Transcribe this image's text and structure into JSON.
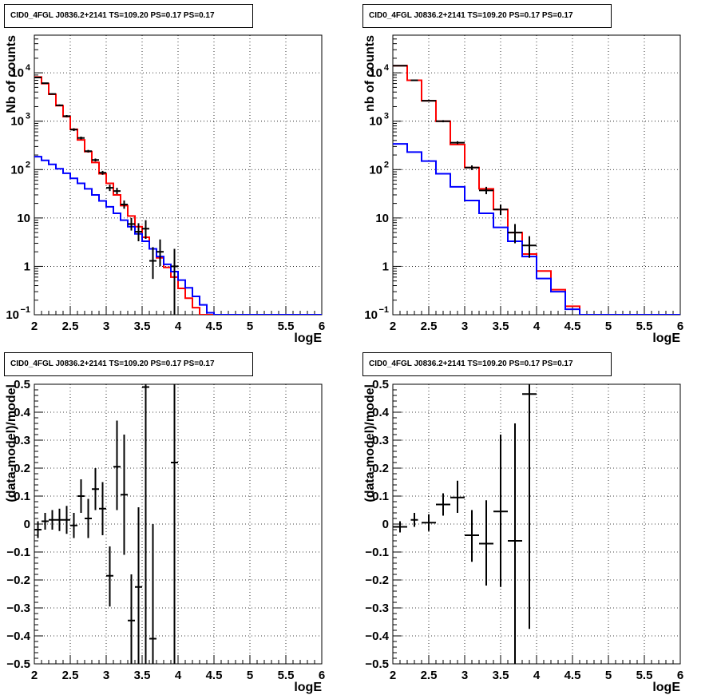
{
  "canvas_bg": "#ffffff",
  "chart_data": [
    {
      "type": "line",
      "title": "CID0_4FGL J0836.2+2141 TS=109.20 PS=0.17 PS=0.17",
      "xlabel": "logE",
      "ylabel": "Nb of counts",
      "xlim": [
        2,
        6
      ],
      "ylim": [
        0.1,
        60000
      ],
      "log_y": true,
      "grid": true,
      "x_ticks": [
        "2",
        "2.5",
        "3",
        "3.5",
        "4",
        "4.5",
        "5",
        "5.5",
        "6"
      ],
      "y_ticks": [
        {
          "v": 0.1,
          "label": "10",
          "exp": "−1"
        },
        {
          "v": 1,
          "label": "1"
        },
        {
          "v": 10,
          "label": "10"
        },
        {
          "v": 100,
          "label": "10",
          "exp": "2"
        },
        {
          "v": 1000,
          "label": "10",
          "exp": "3"
        },
        {
          "v": 10000,
          "label": "10",
          "exp": "4"
        }
      ],
      "bin_edges": [
        2.0,
        2.1,
        2.2,
        2.3,
        2.4,
        2.5,
        2.6,
        2.7,
        2.8,
        2.9,
        3.0,
        3.1,
        3.2,
        3.3,
        3.4,
        3.5,
        3.6,
        3.7,
        3.8,
        3.9,
        4.0,
        4.1,
        4.2,
        4.3,
        4.4,
        4.5,
        4.6,
        4.7,
        4.8,
        4.9,
        5.0,
        5.1,
        5.2,
        5.3,
        5.4,
        5.5,
        5.6,
        5.7,
        5.8,
        5.9,
        6.0
      ],
      "series": [
        {
          "color": "#ff0000",
          "style": "step",
          "values": [
            8200,
            6000,
            3600,
            2100,
            1250,
            680,
            410,
            235,
            140,
            82,
            52,
            30,
            18,
            11,
            6.6,
            4.0,
            2.3,
            1.5,
            0.95,
            0.6,
            0.35,
            0.22,
            0.14,
            0.1,
            0.1,
            0.1,
            0.1,
            0.1,
            0.1,
            0.1,
            0.1,
            0.1,
            0.1,
            0.1,
            0.1,
            0.1,
            0.1,
            0.1,
            0.1,
            0.1
          ]
        },
        {
          "color": "#0000ff",
          "style": "step",
          "values": [
            185,
            155,
            128,
            104,
            84,
            66,
            52,
            40,
            30,
            22.5,
            17,
            12.5,
            9.0,
            6.6,
            4.7,
            3.3,
            2.3,
            1.6,
            1.1,
            0.78,
            0.52,
            0.36,
            0.24,
            0.16,
            0.11,
            0.1,
            0.1,
            0.1,
            0.1,
            0.1,
            0.1,
            0.1,
            0.1,
            0.1,
            0.1,
            0.1,
            0.1,
            0.1,
            0.1,
            0.1
          ]
        },
        {
          "color": "#000000",
          "style": "points",
          "points": [
            {
              "x": 2.05,
              "y": 8000,
              "lo": 7800,
              "hi": 8200
            },
            {
              "x": 2.15,
              "y": 6100,
              "lo": 5950,
              "hi": 6250
            },
            {
              "x": 2.25,
              "y": 3650,
              "lo": 3530,
              "hi": 3770
            },
            {
              "x": 2.35,
              "y": 2130,
              "lo": 2040,
              "hi": 2220
            },
            {
              "x": 2.45,
              "y": 1270,
              "lo": 1200,
              "hi": 1340
            },
            {
              "x": 2.55,
              "y": 670,
              "lo": 625,
              "hi": 715
            },
            {
              "x": 2.65,
              "y": 450,
              "lo": 420,
              "hi": 480
            },
            {
              "x": 2.75,
              "y": 240,
              "lo": 225,
              "hi": 255
            },
            {
              "x": 2.85,
              "y": 158,
              "lo": 147,
              "hi": 169
            },
            {
              "x": 2.95,
              "y": 86,
              "lo": 78,
              "hi": 94
            },
            {
              "x": 3.05,
              "y": 42,
              "lo": 36,
              "hi": 49
            },
            {
              "x": 3.15,
              "y": 36,
              "lo": 31,
              "hi": 42
            },
            {
              "x": 3.25,
              "y": 19,
              "lo": 15.5,
              "hi": 23
            },
            {
              "x": 3.35,
              "y": 7.5,
              "lo": 5.5,
              "hi": 10
            },
            {
              "x": 3.45,
              "y": 5.2,
              "lo": 3.3,
              "hi": 7.8
            },
            {
              "x": 3.55,
              "y": 6.0,
              "lo": 3.7,
              "hi": 9.0
            },
            {
              "x": 3.65,
              "y": 1.3,
              "lo": 0.55,
              "hi": 2.5
            },
            {
              "x": 3.75,
              "y": 2.0,
              "lo": 1.0,
              "hi": 3.6
            },
            {
              "x": 3.95,
              "y": 1.0,
              "lo": 0.1,
              "hi": 2.3
            }
          ]
        }
      ]
    },
    {
      "type": "line",
      "title": "CID0_4FGL J0836.2+2141 TS=109.20 PS=0.17 PS=0.17",
      "xlabel": "logE",
      "ylabel": "nb of counts",
      "xlim": [
        2,
        6
      ],
      "ylim": [
        0.1,
        60000
      ],
      "log_y": true,
      "grid": true,
      "x_ticks": [
        "2",
        "2.5",
        "3",
        "3.5",
        "4",
        "4.5",
        "5",
        "5.5",
        "6"
      ],
      "y_ticks": [
        {
          "v": 0.1,
          "label": "10",
          "exp": "−1"
        },
        {
          "v": 1,
          "label": "1"
        },
        {
          "v": 10,
          "label": "10"
        },
        {
          "v": 100,
          "label": "10",
          "exp": "2"
        },
        {
          "v": 1000,
          "label": "10",
          "exp": "3"
        },
        {
          "v": 10000,
          "label": "10",
          "exp": "4"
        }
      ],
      "bin_edges": [
        2.0,
        2.2,
        2.4,
        2.6,
        2.8,
        3.0,
        3.2,
        3.4,
        3.6,
        3.8,
        4.0,
        4.2,
        4.4,
        4.6,
        4.8,
        5.0,
        5.2,
        5.4,
        5.6,
        5.8,
        6.0
      ],
      "series": [
        {
          "color": "#ff0000",
          "style": "step",
          "values": [
            14000,
            7000,
            2650,
            1000,
            330,
            110,
            40,
            15,
            5.0,
            1.8,
            0.8,
            0.33,
            0.15,
            0.1,
            0.1,
            0.1,
            0.1,
            0.1,
            0.1,
            0.1
          ]
        },
        {
          "color": "#0000ff",
          "style": "step",
          "values": [
            340,
            230,
            150,
            82,
            44,
            23,
            12.5,
            6.4,
            3.3,
            1.6,
            0.56,
            0.3,
            0.13,
            0.1,
            0.1,
            0.1,
            0.1,
            0.1,
            0.1,
            0.1
          ]
        },
        {
          "color": "#000000",
          "style": "points",
          "points": [
            {
              "x": 2.1,
              "y": 14000,
              "lo": 13800,
              "hi": 14200
            },
            {
              "x": 2.3,
              "y": 7000,
              "lo": 6850,
              "hi": 7150
            },
            {
              "x": 2.5,
              "y": 2650,
              "lo": 2560,
              "hi": 2740
            },
            {
              "x": 2.7,
              "y": 1000,
              "lo": 950,
              "hi": 1050
            },
            {
              "x": 2.9,
              "y": 360,
              "lo": 335,
              "hi": 385
            },
            {
              "x": 3.1,
              "y": 110,
              "lo": 98,
              "hi": 122
            },
            {
              "x": 3.3,
              "y": 37,
              "lo": 31,
              "hi": 44
            },
            {
              "x": 3.5,
              "y": 15,
              "lo": 11.5,
              "hi": 19
            },
            {
              "x": 3.7,
              "y": 5.0,
              "lo": 3.0,
              "hi": 7.5
            },
            {
              "x": 3.9,
              "y": 2.7,
              "lo": 1.5,
              "hi": 4.2
            }
          ]
        }
      ]
    },
    {
      "type": "scatter",
      "title": "CID0_4FGL J0836.2+2141 TS=109.20 PS=0.17 PS=0.17",
      "xlabel": "logE",
      "ylabel": "(data-model)/model",
      "xlim": [
        2,
        6
      ],
      "ylim": [
        -0.5,
        0.5
      ],
      "log_y": false,
      "grid": true,
      "x_ticks": [
        "2",
        "2.5",
        "3",
        "3.5",
        "4",
        "4.5",
        "5",
        "5.5",
        "6"
      ],
      "y_ticks": [
        {
          "v": -0.5,
          "label": "−0.5"
        },
        {
          "v": -0.4,
          "label": "−0.4"
        },
        {
          "v": -0.3,
          "label": "−0.3"
        },
        {
          "v": -0.2,
          "label": "−0.2"
        },
        {
          "v": -0.1,
          "label": "−0.1"
        },
        {
          "v": 0,
          "label": "0"
        },
        {
          "v": 0.1,
          "label": "0.1"
        },
        {
          "v": 0.2,
          "label": "0.2"
        },
        {
          "v": 0.3,
          "label": "0.3"
        },
        {
          "v": 0.4,
          "label": "0.4"
        },
        {
          "v": 0.5,
          "label": "0.5"
        }
      ],
      "series": [
        {
          "color": "#000000",
          "style": "points",
          "points": [
            {
              "x": 2.05,
              "y": -0.02,
              "lo": -0.05,
              "hi": 0.01
            },
            {
              "x": 2.15,
              "y": 0.01,
              "lo": -0.02,
              "hi": 0.04
            },
            {
              "x": 2.25,
              "y": 0.015,
              "lo": -0.02,
              "hi": 0.05
            },
            {
              "x": 2.35,
              "y": 0.015,
              "lo": -0.025,
              "hi": 0.055
            },
            {
              "x": 2.45,
              "y": 0.015,
              "lo": -0.035,
              "hi": 0.065
            },
            {
              "x": 2.55,
              "y": -0.005,
              "lo": -0.05,
              "hi": 0.04
            },
            {
              "x": 2.65,
              "y": 0.1,
              "lo": 0.04,
              "hi": 0.16
            },
            {
              "x": 2.75,
              "y": 0.02,
              "lo": -0.05,
              "hi": 0.09
            },
            {
              "x": 2.85,
              "y": 0.125,
              "lo": 0.05,
              "hi": 0.2
            },
            {
              "x": 2.95,
              "y": 0.055,
              "lo": -0.04,
              "hi": 0.15
            },
            {
              "x": 3.05,
              "y": -0.185,
              "lo": -0.295,
              "hi": -0.08
            },
            {
              "x": 3.15,
              "y": 0.205,
              "lo": 0.05,
              "hi": 0.37
            },
            {
              "x": 3.25,
              "y": 0.105,
              "lo": -0.11,
              "hi": 0.32
            },
            {
              "x": 3.35,
              "y": -0.345,
              "lo": -0.5,
              "hi": -0.18
            },
            {
              "x": 3.45,
              "y": -0.225,
              "lo": -0.5,
              "hi": 0.06
            },
            {
              "x": 3.55,
              "y": 0.49,
              "lo": -0.5,
              "hi": 0.5
            },
            {
              "x": 3.65,
              "y": -0.41,
              "lo": -0.5,
              "hi": 0.0
            },
            {
              "x": 3.95,
              "y": 0.22,
              "lo": -0.5,
              "hi": 0.5
            }
          ]
        }
      ]
    },
    {
      "type": "scatter",
      "title": "CID0_4FGL J0836.2+2141 TS=109.20 PS=0.17 PS=0.17",
      "xlabel": "logE",
      "ylabel": "(data-model)/model",
      "xlim": [
        2,
        6
      ],
      "ylim": [
        -0.5,
        0.5
      ],
      "log_y": false,
      "grid": true,
      "x_ticks": [
        "2",
        "2.5",
        "3",
        "3.5",
        "4",
        "4.5",
        "5",
        "5.5",
        "6"
      ],
      "y_ticks": [
        {
          "v": -0.5,
          "label": "−0.5"
        },
        {
          "v": -0.4,
          "label": "−0.4"
        },
        {
          "v": -0.3,
          "label": "−0.3"
        },
        {
          "v": -0.2,
          "label": "−0.2"
        },
        {
          "v": -0.1,
          "label": "−0.1"
        },
        {
          "v": 0,
          "label": "0"
        },
        {
          "v": 0.1,
          "label": "0.1"
        },
        {
          "v": 0.2,
          "label": "0.2"
        },
        {
          "v": 0.3,
          "label": "0.3"
        },
        {
          "v": 0.4,
          "label": "0.4"
        },
        {
          "v": 0.5,
          "label": "0.5"
        }
      ],
      "series": [
        {
          "color": "#000000",
          "style": "points",
          "points": [
            {
              "x": 2.1,
              "y": -0.01,
              "lo": -0.03,
              "hi": 0.01
            },
            {
              "x": 2.3,
              "y": 0.015,
              "lo": -0.01,
              "hi": 0.04
            },
            {
              "x": 2.5,
              "y": 0.005,
              "lo": -0.025,
              "hi": 0.035
            },
            {
              "x": 2.7,
              "y": 0.07,
              "lo": 0.03,
              "hi": 0.11
            },
            {
              "x": 2.9,
              "y": 0.095,
              "lo": 0.04,
              "hi": 0.155
            },
            {
              "x": 3.1,
              "y": -0.04,
              "lo": -0.135,
              "hi": 0.05
            },
            {
              "x": 3.3,
              "y": -0.07,
              "lo": -0.22,
              "hi": 0.085
            },
            {
              "x": 3.5,
              "y": 0.045,
              "lo": -0.225,
              "hi": 0.32
            },
            {
              "x": 3.7,
              "y": -0.06,
              "lo": -0.5,
              "hi": 0.36
            },
            {
              "x": 3.9,
              "y": 0.465,
              "lo": -0.375,
              "hi": 0.5
            }
          ]
        }
      ]
    }
  ]
}
